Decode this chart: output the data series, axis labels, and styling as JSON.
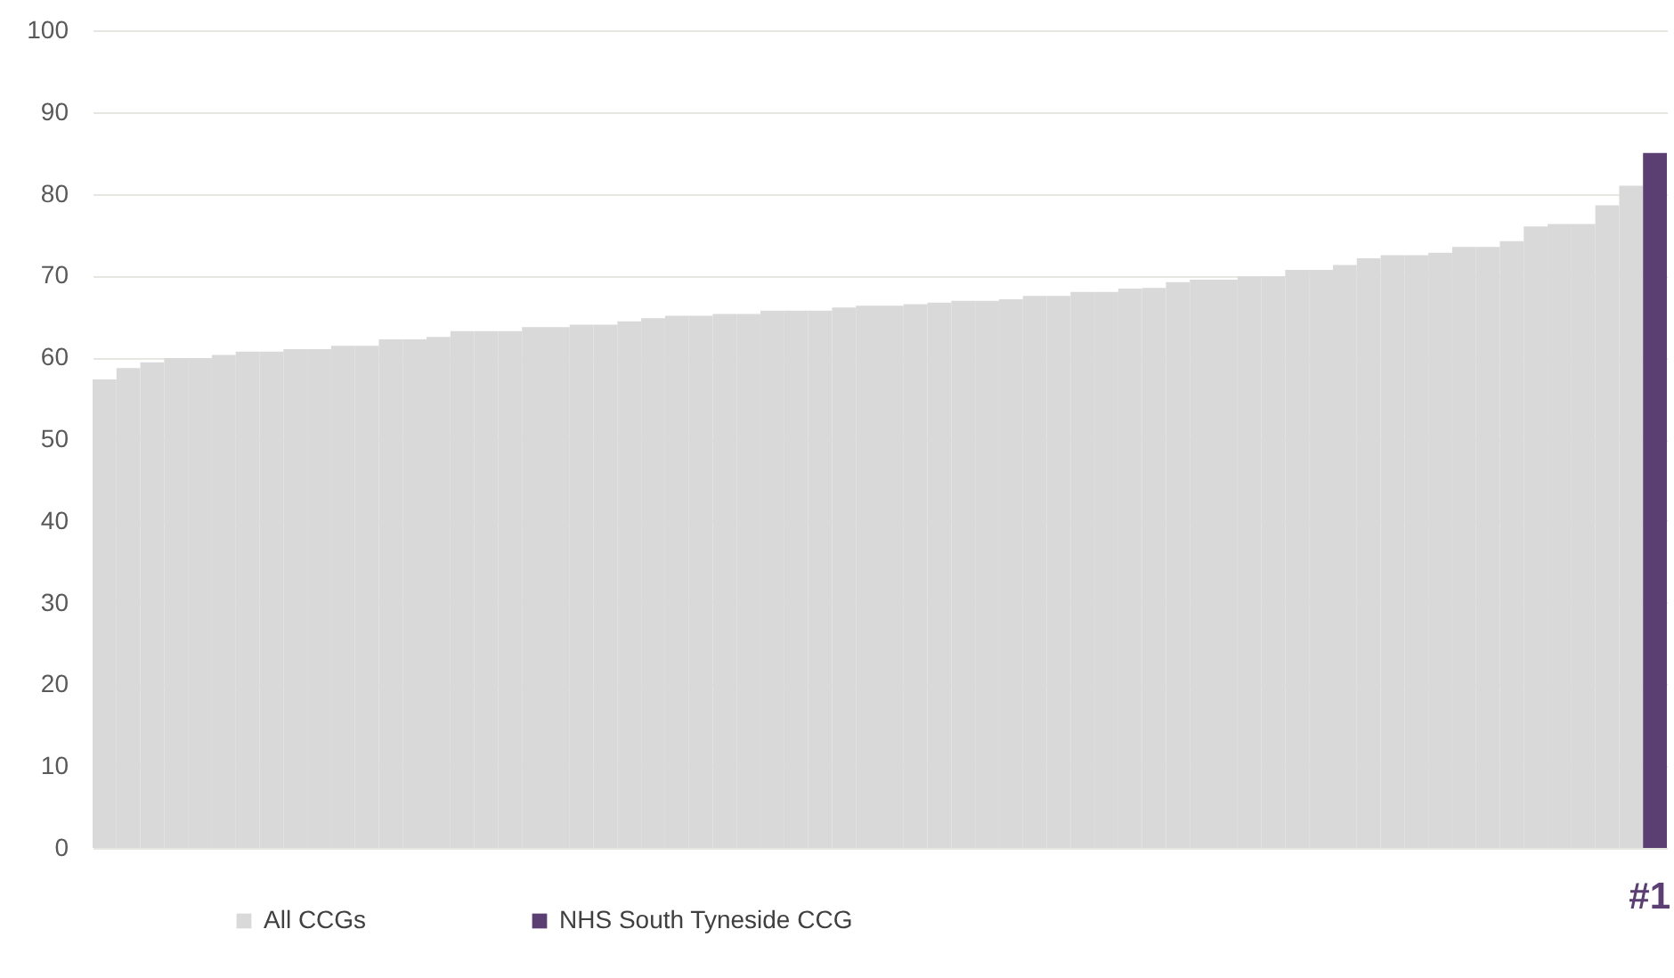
{
  "chart_data": {
    "type": "bar",
    "categories": [
      null,
      null,
      null,
      null,
      null,
      null,
      null,
      null,
      null,
      null,
      null,
      null,
      null,
      null,
      null,
      null,
      null,
      null,
      null,
      null,
      null,
      null,
      null,
      null,
      null,
      null,
      null,
      null,
      null,
      null,
      null,
      null,
      null,
      null,
      null,
      null,
      null,
      null,
      null,
      null,
      null,
      null,
      null,
      null,
      null,
      null,
      null,
      null,
      null,
      null,
      null,
      null,
      null,
      null,
      null,
      null,
      null,
      null,
      null,
      null,
      null,
      null,
      null,
      null,
      null,
      null
    ],
    "series": [
      {
        "name": "All CCGs",
        "color": "#d9d9d9",
        "values": [
          57.3,
          58.7,
          59.4,
          59.9,
          59.9,
          60.3,
          60.7,
          60.7,
          61.0,
          61.0,
          61.4,
          61.4,
          62.2,
          62.2,
          62.5,
          63.2,
          63.2,
          63.2,
          63.7,
          63.7,
          64.0,
          64.0,
          64.4,
          64.8,
          65.1,
          65.1,
          65.3,
          65.3,
          65.7,
          65.7,
          65.7,
          66.1,
          66.3,
          66.3,
          66.5,
          66.7,
          66.9,
          66.9,
          67.1,
          67.5,
          67.5,
          68.0,
          68.0,
          68.4,
          68.5,
          69.2,
          69.5,
          69.5,
          69.9,
          69.9,
          70.7,
          70.7,
          71.3,
          72.1,
          72.5,
          72.5,
          72.8,
          73.5,
          73.5,
          74.2,
          76.0,
          76.3,
          76.3,
          78.6,
          81.0,
          null
        ]
      },
      {
        "name": "NHS South Tyneside CCG",
        "color": "#5b3f73",
        "values": [
          null,
          null,
          null,
          null,
          null,
          null,
          null,
          null,
          null,
          null,
          null,
          null,
          null,
          null,
          null,
          null,
          null,
          null,
          null,
          null,
          null,
          null,
          null,
          null,
          null,
          null,
          null,
          null,
          null,
          null,
          null,
          null,
          null,
          null,
          null,
          null,
          null,
          null,
          null,
          null,
          null,
          null,
          null,
          null,
          null,
          null,
          null,
          null,
          null,
          null,
          null,
          null,
          null,
          null,
          null,
          null,
          null,
          null,
          null,
          null,
          null,
          null,
          null,
          null,
          null,
          85
        ]
      }
    ],
    "ylim": [
      0,
      100
    ],
    "yticks": [
      0,
      10,
      20,
      30,
      40,
      50,
      60,
      70,
      80,
      90,
      100
    ],
    "grid": "y",
    "legend": "bottom left",
    "tick_labels": "y",
    "annotations": [
      "#1"
    ]
  }
}
